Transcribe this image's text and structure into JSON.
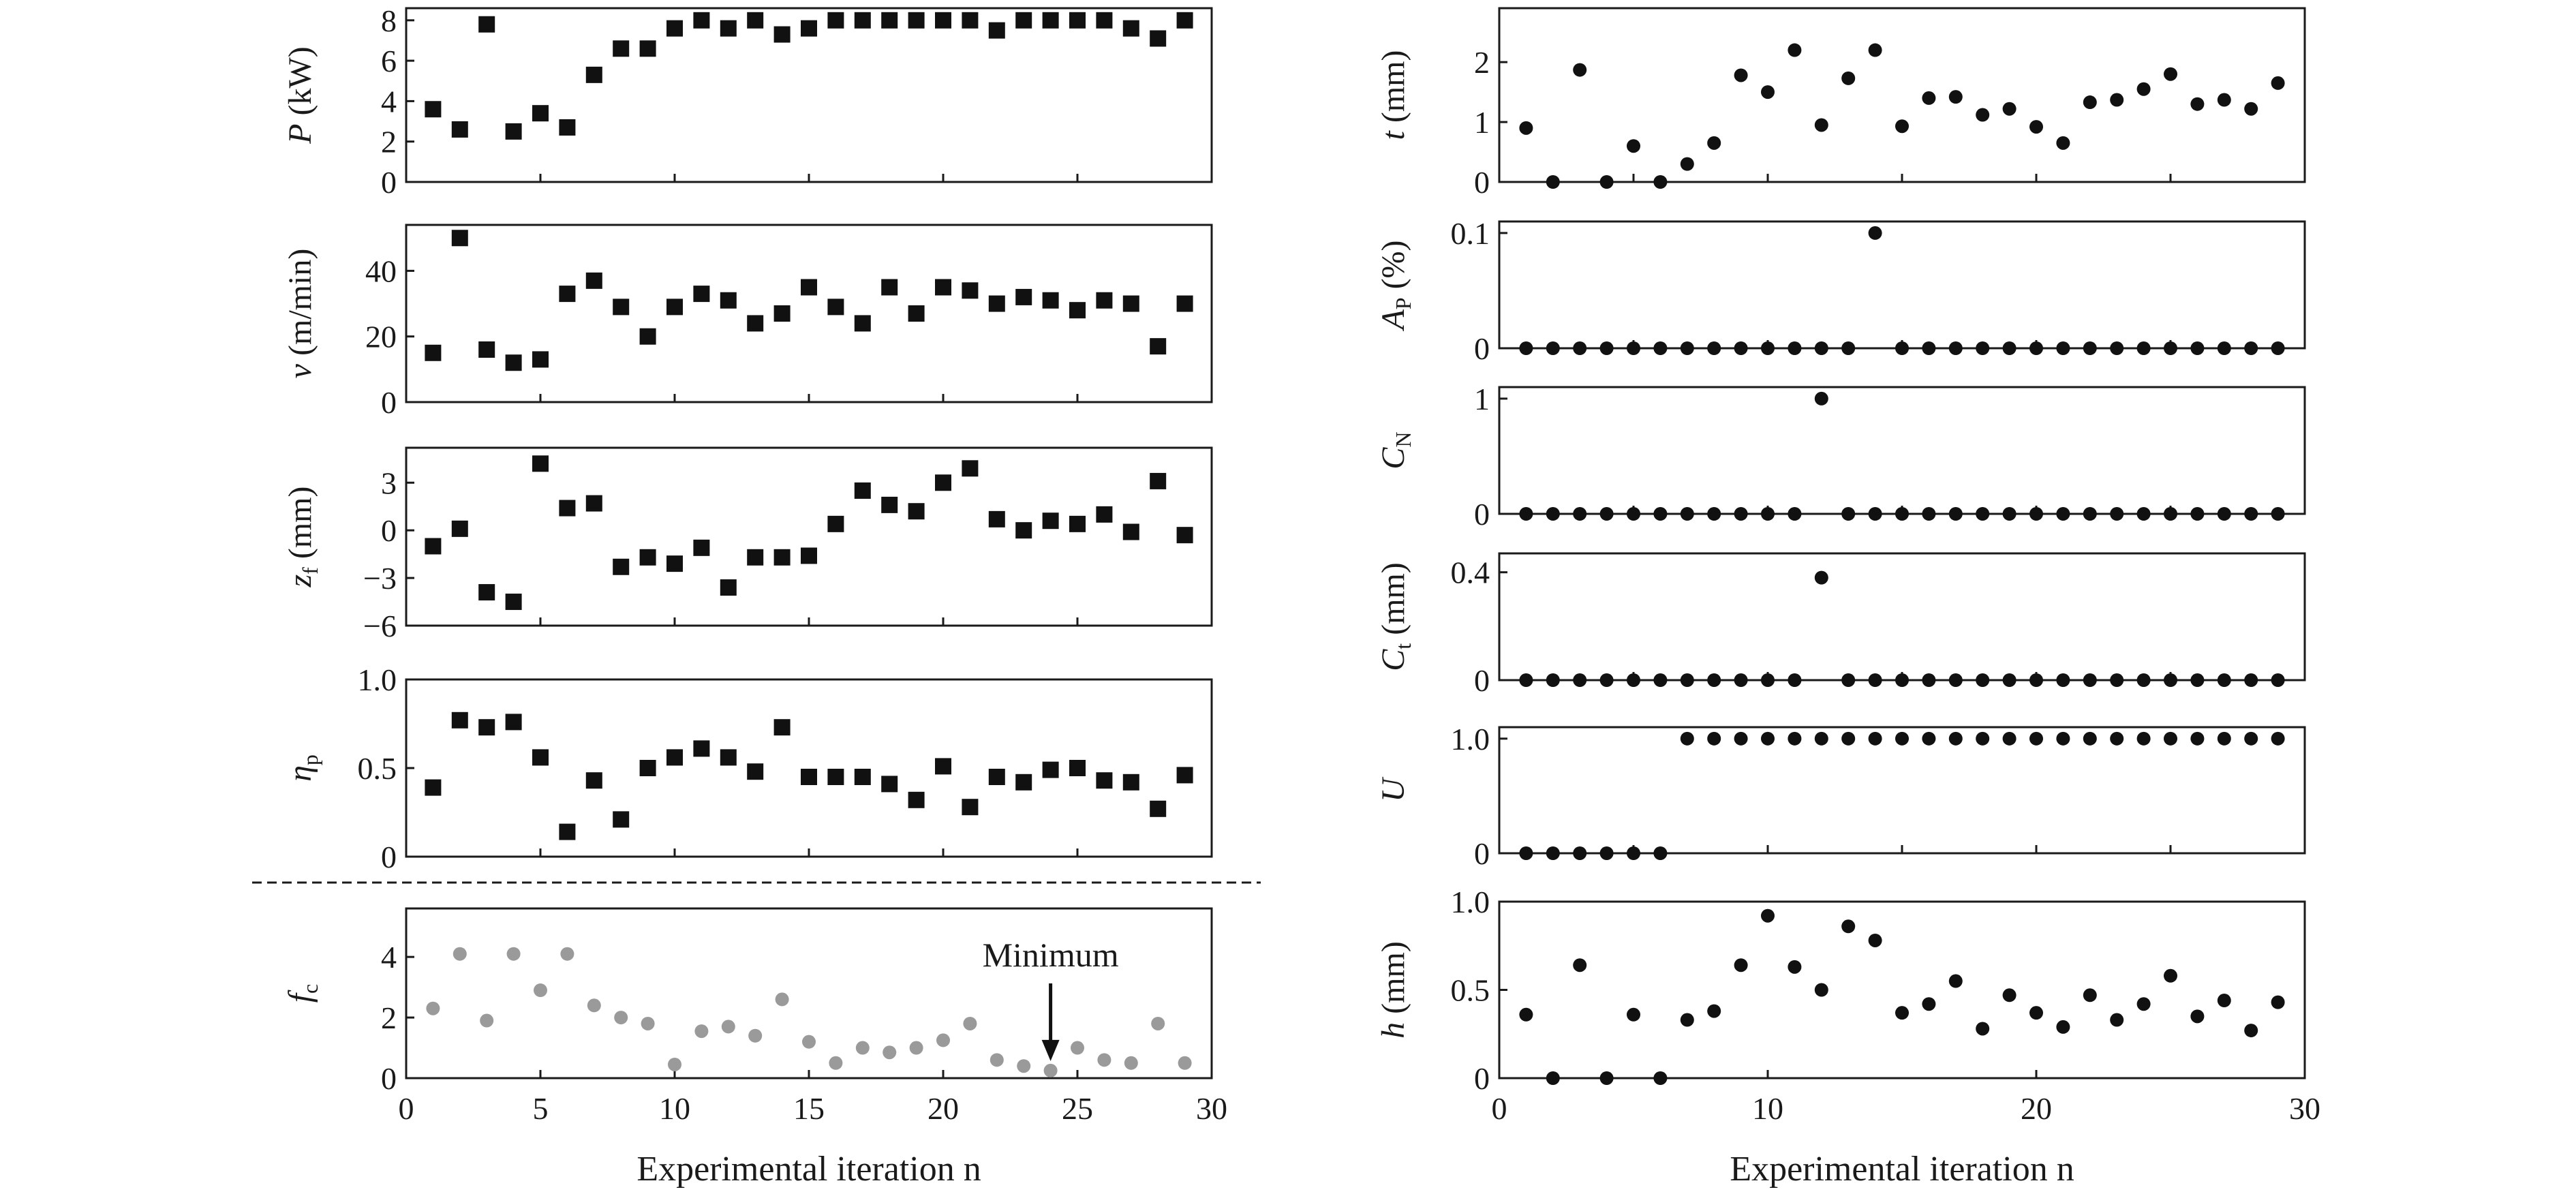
{
  "chart_data": [
    {
      "id": "P",
      "type": "scatter",
      "marker": "square",
      "color": "#111111",
      "ylabel": {
        "sym": "P",
        "unit": " (kW)"
      },
      "ylim": [
        0,
        8.6
      ],
      "yticks": [
        0,
        2,
        4,
        6,
        8
      ],
      "ytick_labels": [
        "0",
        "2",
        "4",
        "6",
        "8"
      ],
      "xlim": [
        0,
        30
      ],
      "x": [
        1,
        2,
        3,
        4,
        5,
        6,
        7,
        8,
        9,
        10,
        11,
        12,
        13,
        14,
        15,
        16,
        17,
        18,
        19,
        20,
        21,
        22,
        23,
        24,
        25,
        26,
        27,
        28,
        29
      ],
      "y": [
        3.6,
        2.6,
        7.8,
        2.5,
        3.4,
        2.7,
        5.3,
        6.6,
        6.6,
        7.6,
        8.0,
        7.6,
        8.0,
        7.3,
        7.6,
        8.0,
        8.0,
        8.0,
        8.0,
        8.0,
        8.0,
        7.5,
        8.0,
        8.0,
        8.0,
        8.0,
        7.6,
        7.1,
        8.0
      ]
    },
    {
      "id": "v",
      "type": "scatter",
      "marker": "square",
      "color": "#111111",
      "ylabel": {
        "sym": "v",
        "unit": " (m/min)"
      },
      "ylim": [
        0,
        54
      ],
      "yticks": [
        0,
        20,
        40
      ],
      "ytick_labels": [
        "0",
        "20",
        "40"
      ],
      "xlim": [
        0,
        30
      ],
      "x": [
        1,
        2,
        3,
        4,
        5,
        6,
        7,
        8,
        9,
        10,
        11,
        12,
        13,
        14,
        15,
        16,
        17,
        18,
        19,
        20,
        21,
        22,
        23,
        24,
        25,
        26,
        27,
        28,
        29
      ],
      "y": [
        15,
        50,
        16,
        12,
        13,
        33,
        37,
        29,
        20,
        29,
        33,
        31,
        24,
        27,
        35,
        29,
        24,
        35,
        27,
        35,
        34,
        30,
        32,
        31,
        28,
        31,
        30,
        17,
        30
      ]
    },
    {
      "id": "zf",
      "type": "scatter",
      "marker": "square",
      "color": "#111111",
      "ylabel": {
        "sym": "z",
        "sub": "f",
        "unit": " (mm)"
      },
      "ylim": [
        -6,
        5.2
      ],
      "yticks": [
        -6,
        -3,
        0,
        3
      ],
      "ytick_labels": [
        "−6",
        "−3",
        "0",
        "3"
      ],
      "xlim": [
        0,
        30
      ],
      "x": [
        1,
        2,
        3,
        4,
        5,
        6,
        7,
        8,
        9,
        10,
        11,
        12,
        13,
        14,
        15,
        16,
        17,
        18,
        19,
        20,
        21,
        22,
        23,
        24,
        25,
        26,
        27,
        28,
        29
      ],
      "y": [
        -1.0,
        0.1,
        -3.9,
        -4.5,
        4.2,
        1.4,
        1.7,
        -2.3,
        -1.7,
        -2.1,
        -1.1,
        -3.6,
        -1.7,
        -1.7,
        -1.6,
        0.4,
        2.5,
        1.6,
        1.2,
        3.0,
        3.9,
        0.7,
        0.0,
        0.6,
        0.4,
        1.0,
        -0.1,
        3.1,
        -0.3
      ]
    },
    {
      "id": "eta",
      "type": "scatter",
      "marker": "square",
      "color": "#111111",
      "ylabel": {
        "sym": "η",
        "sub": "p",
        "unit": ""
      },
      "ylim": [
        0,
        1.0
      ],
      "yticks": [
        0,
        0.5,
        1.0
      ],
      "ytick_labels": [
        "0",
        "0.5",
        "1.0"
      ],
      "xlim": [
        0,
        30
      ],
      "x": [
        1,
        2,
        3,
        4,
        5,
        6,
        7,
        8,
        9,
        10,
        11,
        12,
        13,
        14,
        15,
        16,
        17,
        18,
        19,
        20,
        21,
        22,
        23,
        24,
        25,
        26,
        27,
        28,
        29
      ],
      "y": [
        0.39,
        0.77,
        0.73,
        0.76,
        0.56,
        0.14,
        0.43,
        0.21,
        0.5,
        0.56,
        0.61,
        0.56,
        0.48,
        0.73,
        0.45,
        0.45,
        0.45,
        0.41,
        0.32,
        0.51,
        0.28,
        0.45,
        0.42,
        0.49,
        0.5,
        0.43,
        0.42,
        0.27,
        0.46
      ]
    },
    {
      "id": "fc",
      "type": "scatter",
      "marker": "circle",
      "color": "#9a9a9a",
      "ylabel": {
        "sym": "f",
        "sub": "c",
        "unit": ""
      },
      "ylim": [
        0,
        5.6
      ],
      "yticks": [
        0,
        2,
        4
      ],
      "ytick_labels": [
        "0",
        "2",
        "4"
      ],
      "xlim": [
        0,
        30
      ],
      "xticks": [
        0,
        5,
        10,
        15,
        20,
        25,
        30
      ],
      "xtick_labels": [
        "0",
        "5",
        "10",
        "15",
        "20",
        "25",
        "30"
      ],
      "xlabel": "Experimental iteration n",
      "annotation": {
        "text": "Minimum",
        "x": 24,
        "y": 0.25
      },
      "x": [
        1,
        2,
        3,
        4,
        5,
        6,
        7,
        8,
        9,
        10,
        11,
        12,
        13,
        14,
        15,
        16,
        17,
        18,
        19,
        20,
        21,
        22,
        23,
        24,
        25,
        26,
        27,
        28,
        29
      ],
      "y": [
        2.3,
        4.1,
        1.9,
        4.1,
        2.9,
        4.1,
        2.4,
        2.0,
        1.8,
        0.45,
        1.55,
        1.7,
        1.4,
        2.6,
        1.2,
        0.5,
        1.0,
        0.85,
        1.0,
        1.25,
        1.8,
        0.6,
        0.4,
        0.25,
        1.0,
        0.6,
        0.5,
        1.8,
        0.5
      ]
    },
    {
      "id": "t",
      "type": "scatter",
      "marker": "circle",
      "color": "#111111",
      "ylabel": {
        "sym": "t",
        "unit": " (mm)"
      },
      "ylim": [
        0,
        2.9
      ],
      "yticks": [
        0,
        1,
        2
      ],
      "ytick_labels": [
        "0",
        "1",
        "2"
      ],
      "xlim": [
        0,
        30
      ],
      "x": [
        1,
        2,
        3,
        4,
        5,
        6,
        7,
        8,
        9,
        10,
        11,
        12,
        13,
        14,
        15,
        16,
        17,
        18,
        19,
        20,
        21,
        22,
        23,
        24,
        25,
        26,
        27,
        28,
        29
      ],
      "y": [
        0.9,
        0.0,
        1.87,
        0.0,
        0.6,
        0.0,
        0.3,
        0.65,
        1.78,
        1.5,
        2.2,
        0.95,
        1.73,
        2.2,
        0.93,
        1.4,
        1.42,
        1.12,
        1.22,
        0.92,
        0.65,
        1.33,
        1.37,
        1.55,
        1.8,
        1.3,
        1.37,
        1.22,
        1.65
      ]
    },
    {
      "id": "Ap",
      "type": "scatter",
      "marker": "circle",
      "color": "#111111",
      "ylabel": {
        "sym": "A",
        "sub": "P",
        "unit": " (%)"
      },
      "ylim": [
        0,
        0.11
      ],
      "yticks": [
        0,
        0.1
      ],
      "ytick_labels": [
        "0",
        "0.1"
      ],
      "xlim": [
        0,
        30
      ],
      "x": [
        1,
        2,
        3,
        4,
        5,
        6,
        7,
        8,
        9,
        10,
        11,
        12,
        13,
        14,
        15,
        16,
        17,
        18,
        19,
        20,
        21,
        22,
        23,
        24,
        25,
        26,
        27,
        28,
        29
      ],
      "y": [
        0,
        0,
        0,
        0,
        0,
        0,
        0,
        0,
        0,
        0,
        0,
        0,
        0,
        0.1,
        0,
        0,
        0,
        0,
        0,
        0,
        0,
        0,
        0,
        0,
        0,
        0,
        0,
        0,
        0
      ]
    },
    {
      "id": "CN",
      "type": "scatter",
      "marker": "circle",
      "color": "#111111",
      "ylabel": {
        "sym": "C",
        "sub": "N",
        "unit": ""
      },
      "ylim": [
        0,
        1.1
      ],
      "yticks": [
        0,
        1
      ],
      "ytick_labels": [
        "0",
        "1"
      ],
      "xlim": [
        0,
        30
      ],
      "x": [
        1,
        2,
        3,
        4,
        5,
        6,
        7,
        8,
        9,
        10,
        11,
        12,
        13,
        14,
        15,
        16,
        17,
        18,
        19,
        20,
        21,
        22,
        23,
        24,
        25,
        26,
        27,
        28,
        29
      ],
      "y": [
        0,
        0,
        0,
        0,
        0,
        0,
        0,
        0,
        0,
        0,
        0,
        1,
        0,
        0,
        0,
        0,
        0,
        0,
        0,
        0,
        0,
        0,
        0,
        0,
        0,
        0,
        0,
        0,
        0
      ]
    },
    {
      "id": "Ct",
      "type": "scatter",
      "marker": "circle",
      "color": "#111111",
      "ylabel": {
        "sym": "C",
        "sub": "t",
        "unit": " (mm)"
      },
      "ylim": [
        0,
        0.47
      ],
      "yticks": [
        0,
        0.4
      ],
      "ytick_labels": [
        "0",
        "0.4"
      ],
      "xlim": [
        0,
        30
      ],
      "x": [
        1,
        2,
        3,
        4,
        5,
        6,
        7,
        8,
        9,
        10,
        11,
        12,
        13,
        14,
        15,
        16,
        17,
        18,
        19,
        20,
        21,
        22,
        23,
        24,
        25,
        26,
        27,
        28,
        29
      ],
      "y": [
        0,
        0,
        0,
        0,
        0,
        0,
        0,
        0,
        0,
        0,
        0,
        0.38,
        0,
        0,
        0,
        0,
        0,
        0,
        0,
        0,
        0,
        0,
        0,
        0,
        0,
        0,
        0,
        0,
        0
      ]
    },
    {
      "id": "U",
      "type": "scatter",
      "marker": "circle",
      "color": "#111111",
      "ylabel": {
        "sym": "U",
        "unit": ""
      },
      "ylim": [
        0,
        1.1
      ],
      "yticks": [
        0,
        1.0
      ],
      "ytick_labels": [
        "0",
        "1.0"
      ],
      "xlim": [
        0,
        30
      ],
      "x": [
        1,
        2,
        3,
        4,
        5,
        6,
        7,
        8,
        9,
        10,
        11,
        12,
        13,
        14,
        15,
        16,
        17,
        18,
        19,
        20,
        21,
        22,
        23,
        24,
        25,
        26,
        27,
        28,
        29
      ],
      "y": [
        0,
        0,
        0,
        0,
        0,
        0,
        1,
        1,
        1,
        1,
        1,
        1,
        1,
        1,
        1,
        1,
        1,
        1,
        1,
        1,
        1,
        1,
        1,
        1,
        1,
        1,
        1,
        1,
        1
      ]
    },
    {
      "id": "h",
      "type": "scatter",
      "marker": "circle",
      "color": "#111111",
      "ylabel": {
        "sym": "h",
        "unit": " (mm)"
      },
      "ylim": [
        0,
        1.0
      ],
      "yticks": [
        0,
        0.5,
        1.0
      ],
      "ytick_labels": [
        "0",
        "0.5",
        "1.0"
      ],
      "xlim": [
        0,
        30
      ],
      "xticks": [
        0,
        10,
        20,
        30
      ],
      "xtick_labels": [
        "0",
        "10",
        "20",
        "30"
      ],
      "xlabel": "Experimental iteration n",
      "x": [
        1,
        2,
        3,
        4,
        5,
        6,
        7,
        8,
        9,
        10,
        11,
        12,
        13,
        14,
        15,
        16,
        17,
        18,
        19,
        20,
        21,
        22,
        23,
        24,
        25,
        26,
        27,
        28,
        29
      ],
      "y": [
        0.36,
        0.0,
        0.64,
        0.0,
        0.36,
        0.0,
        0.33,
        0.38,
        0.64,
        0.92,
        0.63,
        0.5,
        0.86,
        0.78,
        0.37,
        0.42,
        0.55,
        0.28,
        0.47,
        0.37,
        0.29,
        0.47,
        0.33,
        0.42,
        0.58,
        0.35,
        0.44,
        0.27,
        0.43
      ]
    }
  ]
}
